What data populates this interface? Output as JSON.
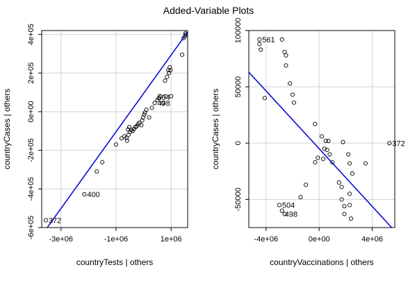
{
  "title": "Added-Variable Plots",
  "colors": {
    "line": "#0a0ad4",
    "grid": "#d3d3d3",
    "points": "#000000"
  },
  "chart_data": [
    {
      "type": "scatter",
      "xlabel": "countryTests | others",
      "ylabel": "countryCases  | others",
      "xlim": [
        -3700000,
        1600000
      ],
      "ylim": [
        -600000,
        420000
      ],
      "grid": true,
      "x_ticks": [
        {
          "value": -3000000,
          "label": "-3e+06"
        },
        {
          "value": -1000000,
          "label": "-1e+06"
        },
        {
          "value": 1000000,
          "label": "1e+06"
        }
      ],
      "y_ticks": [
        {
          "value": -600000,
          "label": "-6e+05"
        },
        {
          "value": -400000,
          "label": "-4e+05"
        },
        {
          "value": -200000,
          "label": "-2e+05"
        },
        {
          "value": 0,
          "label": "0e+00"
        },
        {
          "value": 200000,
          "label": "2e+05"
        },
        {
          "value": 400000,
          "label": "4e+05"
        }
      ],
      "points": [
        [
          -3550000,
          -562000
        ],
        [
          -2150000,
          -428000
        ],
        [
          -1700000,
          -310000
        ],
        [
          -1500000,
          -262000
        ],
        [
          -1000000,
          -170000
        ],
        [
          -800000,
          -138000
        ],
        [
          -700000,
          -128000
        ],
        [
          -600000,
          -150000
        ],
        [
          -620000,
          -135000
        ],
        [
          -550000,
          -120000
        ],
        [
          -500000,
          -105000
        ],
        [
          -450000,
          -95000
        ],
        [
          -400000,
          -100000
        ],
        [
          -350000,
          -90000
        ],
        [
          -300000,
          -80000
        ],
        [
          -560000,
          -92000
        ],
        [
          -520000,
          -80000
        ],
        [
          -250000,
          -75000
        ],
        [
          -200000,
          -65000
        ],
        [
          -150000,
          -58000
        ],
        [
          -80000,
          -70000
        ],
        [
          -50000,
          -45000
        ],
        [
          -20000,
          -30000
        ],
        [
          20000,
          -15000
        ],
        [
          50000,
          -5000
        ],
        [
          100000,
          10000
        ],
        [
          200000,
          -30000
        ],
        [
          300000,
          20000
        ],
        [
          400000,
          45000
        ],
        [
          500000,
          60000
        ],
        [
          550000,
          70000
        ],
        [
          600000,
          80000
        ],
        [
          700000,
          45000
        ],
        [
          800000,
          80000
        ],
        [
          900000,
          215000
        ],
        [
          920000,
          200000
        ],
        [
          780000,
          160000
        ],
        [
          850000,
          180000
        ],
        [
          950000,
          230000
        ],
        [
          980000,
          215000
        ],
        [
          1000000,
          80000
        ],
        [
          1400000,
          295000
        ],
        [
          1450000,
          380000
        ],
        [
          1500000,
          390000
        ],
        [
          1520000,
          405000
        ],
        [
          1550000,
          400000
        ]
      ],
      "fit_line": [
        [
          -3700000,
          -640000
        ],
        [
          1600000,
          412000
        ]
      ],
      "labels": [
        {
          "x": -3550000,
          "y": -562000,
          "text": "372"
        },
        {
          "x": -2150000,
          "y": -428000,
          "text": "400"
        },
        {
          "x": 400000,
          "y": 75000,
          "text": "504"
        },
        {
          "x": 400000,
          "y": 45000,
          "text": "498"
        }
      ]
    },
    {
      "type": "scatter",
      "xlabel": "countryVaccinations | others",
      "ylabel": "countryCases  | others",
      "xlim": [
        -5300000,
        5700000
      ],
      "ylim": [
        -75000,
        100000
      ],
      "grid": true,
      "x_ticks": [
        {
          "value": -4000000,
          "label": "-4e+06"
        },
        {
          "value": 0,
          "label": "0e+00"
        },
        {
          "value": 4000000,
          "label": "4e+06"
        }
      ],
      "y_ticks": [
        {
          "value": -50000,
          "label": "-50000"
        },
        {
          "value": 0,
          "label": "0"
        },
        {
          "value": 50000,
          "label": "50000"
        },
        {
          "value": 100000,
          "label": "100000"
        }
      ],
      "points": [
        [
          -4500000,
          92000
        ],
        [
          -4500000,
          88000
        ],
        [
          -4400000,
          83000
        ],
        [
          -4100000,
          40000
        ],
        [
          -2800000,
          92000
        ],
        [
          -2600000,
          81000
        ],
        [
          -2500000,
          78000
        ],
        [
          -2500000,
          69000
        ],
        [
          -2200000,
          53000
        ],
        [
          -2000000,
          43000
        ],
        [
          -1900000,
          36000
        ],
        [
          -300000,
          17000
        ],
        [
          200000,
          6000
        ],
        [
          500000,
          2000
        ],
        [
          700000,
          2000
        ],
        [
          600000,
          -6000
        ],
        [
          400000,
          -5000
        ],
        [
          800000,
          -10000
        ],
        [
          300000,
          -14000
        ],
        [
          -100000,
          -13000
        ],
        [
          -300000,
          -17000
        ],
        [
          1000000,
          -17000
        ],
        [
          1800000,
          1000
        ],
        [
          2200000,
          -10000
        ],
        [
          2300000,
          -18000
        ],
        [
          2500000,
          -27000
        ],
        [
          1500000,
          -35000
        ],
        [
          1700000,
          -39000
        ],
        [
          2300000,
          -45000
        ],
        [
          1700000,
          -50000
        ],
        [
          2300000,
          -55000
        ],
        [
          1900000,
          -56000
        ],
        [
          1900000,
          -63000
        ],
        [
          2400000,
          -67000
        ],
        [
          2100000,
          -78000
        ],
        [
          -1000000,
          -37000
        ],
        [
          -1400000,
          -48000
        ],
        [
          -3000000,
          -55000
        ],
        [
          -2800000,
          -60000
        ],
        [
          -2600000,
          -63000
        ],
        [
          3500000,
          -18000
        ],
        [
          5300000,
          0
        ]
      ],
      "fit_line": [
        [
          -5300000,
          63000
        ],
        [
          5700000,
          -78000
        ]
      ],
      "labels": [
        {
          "x": -4500000,
          "y": 92000,
          "text": "561"
        },
        {
          "x": 5300000,
          "y": 0,
          "text": "372"
        },
        {
          "x": -3000000,
          "y": -55000,
          "text": "504"
        },
        {
          "x": -2800000,
          "y": -63000,
          "text": "498"
        }
      ]
    }
  ]
}
